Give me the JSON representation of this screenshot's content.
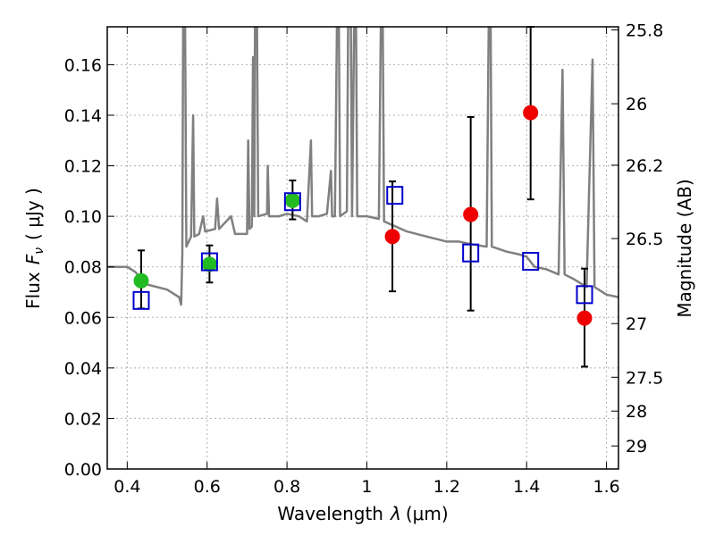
{
  "chart_data": {
    "type": "scatter",
    "title": "",
    "xlabel": "Wavelength",
    "xlabel_symbol": "λ",
    "xlabel_unit": "(μm)",
    "ylabel": "Flux",
    "ylabel_symbol": "F",
    "ylabel_subscript": "ν",
    "ylabel_unit": "( μJy )",
    "y2label": "Magnitude (AB)",
    "xlim": [
      0.35,
      1.63
    ],
    "ylim": [
      0.0,
      0.175
    ],
    "grid": true,
    "x_ticks": [
      0.4,
      0.6,
      0.8,
      1.0,
      1.2,
      1.4,
      1.6
    ],
    "x_tick_labels": [
      "0.4",
      "0.6",
      "0.8",
      "1",
      "1.2",
      "1.4",
      "1.6"
    ],
    "y_ticks": [
      0.0,
      0.02,
      0.04,
      0.06,
      0.08,
      0.1,
      0.12,
      0.14,
      0.16
    ],
    "y_tick_labels": [
      "0.00",
      "0.02",
      "0.04",
      "0.06",
      "0.08",
      "0.10",
      "0.12",
      "0.14",
      "0.16"
    ],
    "y2_tick_labels": [
      "25.8",
      "26",
      "26.2",
      "26.5",
      "27",
      "27.5",
      "28",
      "29"
    ],
    "y2_tick_magnitudes": [
      25.8,
      26.0,
      26.2,
      26.5,
      27.0,
      27.5,
      28.0,
      29.0
    ],
    "colors": {
      "template": "#808080",
      "green": "#22bb22",
      "red": "#ee0000",
      "model": "#0000cc",
      "errorbar": "#000000",
      "grid": "#b0b0b0"
    },
    "series": [
      {
        "marker": "circle",
        "color": "#22bb22",
        "points": [
          {
            "x": 0.435,
            "y": 0.0745,
            "err_lo": 0.0635,
            "err_hi": 0.0865
          },
          {
            "x": 0.606,
            "y": 0.081,
            "err_lo": 0.0738,
            "err_hi": 0.0885
          },
          {
            "x": 0.814,
            "y": 0.1063,
            "err_lo": 0.0988,
            "err_hi": 0.1142
          }
        ]
      },
      {
        "marker": "circle",
        "color": "#ee0000",
        "points": [
          {
            "x": 1.064,
            "y": 0.092,
            "err_lo": 0.0703,
            "err_hi": 0.1138
          },
          {
            "x": 1.26,
            "y": 0.1007,
            "err_lo": 0.0627,
            "err_hi": 0.1393
          },
          {
            "x": 1.41,
            "y": 0.141,
            "err_lo": 0.1067,
            "err_hi": 0.175
          },
          {
            "x": 1.545,
            "y": 0.0597,
            "err_lo": 0.0405,
            "err_hi": 0.0793
          }
        ]
      },
      {
        "marker": "open-square",
        "color": "#0000cc",
        "points": [
          {
            "x": 0.435,
            "y": 0.0667
          },
          {
            "x": 0.606,
            "y": 0.082
          },
          {
            "x": 0.814,
            "y": 0.1058
          },
          {
            "x": 1.07,
            "y": 0.1083
          },
          {
            "x": 1.26,
            "y": 0.0855
          },
          {
            "x": 1.41,
            "y": 0.0822
          },
          {
            "x": 1.545,
            "y": 0.069
          }
        ]
      },
      {
        "marker": "line",
        "color": "#808080",
        "points": [
          [
            0.35,
            0.08
          ],
          [
            0.4,
            0.08
          ],
          [
            0.42,
            0.078
          ],
          [
            0.45,
            0.073
          ],
          [
            0.5,
            0.071
          ],
          [
            0.53,
            0.068
          ],
          [
            0.535,
            0.065
          ],
          [
            0.538,
            0.085
          ],
          [
            0.54,
            0.175
          ],
          [
            0.545,
            0.175
          ],
          [
            0.548,
            0.088
          ],
          [
            0.56,
            0.092
          ],
          [
            0.565,
            0.14
          ],
          [
            0.568,
            0.092
          ],
          [
            0.58,
            0.093
          ],
          [
            0.59,
            0.1
          ],
          [
            0.595,
            0.094
          ],
          [
            0.62,
            0.095
          ],
          [
            0.625,
            0.107
          ],
          [
            0.63,
            0.095
          ],
          [
            0.66,
            0.1
          ],
          [
            0.67,
            0.093
          ],
          [
            0.7,
            0.093
          ],
          [
            0.703,
            0.13
          ],
          [
            0.706,
            0.095
          ],
          [
            0.712,
            0.096
          ],
          [
            0.715,
            0.163
          ],
          [
            0.718,
            0.1
          ],
          [
            0.72,
            0.175
          ],
          [
            0.725,
            0.175
          ],
          [
            0.728,
            0.1
          ],
          [
            0.75,
            0.101
          ],
          [
            0.752,
            0.12
          ],
          [
            0.755,
            0.1
          ],
          [
            0.78,
            0.1
          ],
          [
            0.8,
            0.101
          ],
          [
            0.83,
            0.1
          ],
          [
            0.85,
            0.098
          ],
          [
            0.86,
            0.13
          ],
          [
            0.863,
            0.1
          ],
          [
            0.88,
            0.1
          ],
          [
            0.9,
            0.101
          ],
          [
            0.91,
            0.118
          ],
          [
            0.913,
            0.1
          ],
          [
            0.92,
            0.1
          ],
          [
            0.925,
            0.175
          ],
          [
            0.93,
            0.175
          ],
          [
            0.933,
            0.1
          ],
          [
            0.95,
            0.102
          ],
          [
            0.953,
            0.175
          ],
          [
            0.96,
            0.175
          ],
          [
            0.963,
            0.1
          ],
          [
            0.968,
            0.175
          ],
          [
            0.973,
            0.175
          ],
          [
            0.976,
            0.1
          ],
          [
            1.0,
            0.1
          ],
          [
            1.03,
            0.099
          ],
          [
            1.035,
            0.175
          ],
          [
            1.04,
            0.175
          ],
          [
            1.043,
            0.098
          ],
          [
            1.1,
            0.094
          ],
          [
            1.15,
            0.092
          ],
          [
            1.2,
            0.09
          ],
          [
            1.23,
            0.09
          ],
          [
            1.26,
            0.089
          ],
          [
            1.3,
            0.088
          ],
          [
            1.305,
            0.175
          ],
          [
            1.31,
            0.175
          ],
          [
            1.313,
            0.088
          ],
          [
            1.35,
            0.086
          ],
          [
            1.38,
            0.085
          ],
          [
            1.4,
            0.084
          ],
          [
            1.42,
            0.08
          ],
          [
            1.45,
            0.079
          ],
          [
            1.48,
            0.077
          ],
          [
            1.49,
            0.158
          ],
          [
            1.495,
            0.077
          ],
          [
            1.52,
            0.075
          ],
          [
            1.55,
            0.072
          ],
          [
            1.565,
            0.162
          ],
          [
            1.57,
            0.072
          ],
          [
            1.6,
            0.069
          ],
          [
            1.63,
            0.068
          ]
        ]
      }
    ]
  }
}
